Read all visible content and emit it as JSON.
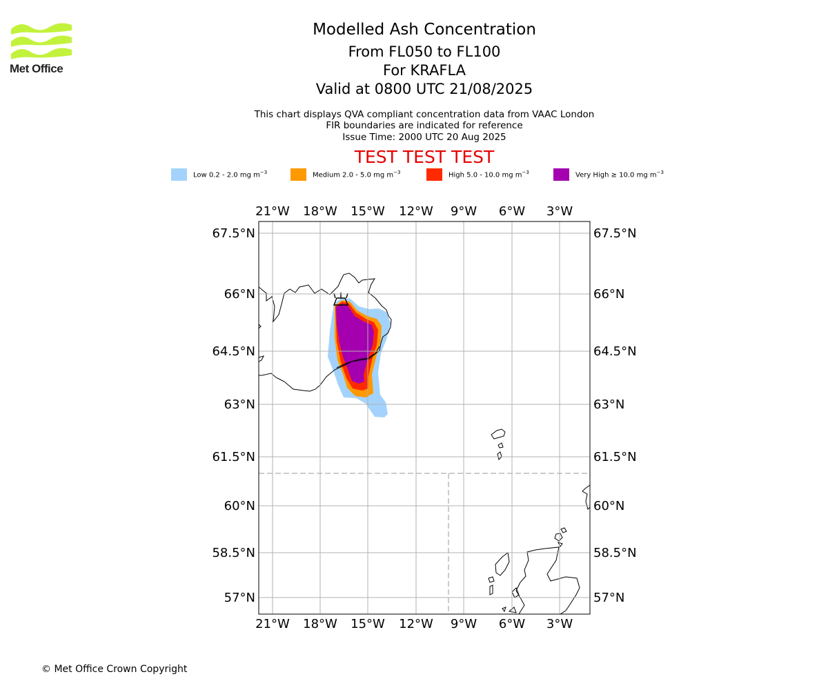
{
  "logo": {
    "text": "Met Office"
  },
  "title": "Modelled Ash Concentration",
  "subtitle_lines": [
    "From FL050 to FL100",
    "For KRAFLA",
    "Valid at 0800 UTC 21/08/2025"
  ],
  "info_lines": [
    "This chart displays QVA compliant concentration data from VAAC London",
    "FIR boundaries are indicated for reference",
    "Issue Time: 2000 UTC 20 Aug 2025"
  ],
  "test_banner": "TEST TEST TEST",
  "legend": [
    {
      "label": "Low 0.2 - 2.0 mg m",
      "color": "#a3d3fc"
    },
    {
      "label": "Medium 2.0 - 5.0 mg m",
      "color": "#ff9900"
    },
    {
      "label": "High 5.0 - 10.0 mg m",
      "color": "#ff2a00"
    },
    {
      "label": "Very High ≥ 10.0 mg m",
      "color": "#a400b0"
    }
  ],
  "legend_unit_exponent": "−3",
  "map": {
    "lon_ticks": [
      "21°W",
      "18°W",
      "15°W",
      "12°W",
      "9°W",
      "6°W",
      "3°W"
    ],
    "lat_ticks": [
      "67.5°N",
      "66°N",
      "64.5°N",
      "63°N",
      "61.5°N",
      "60°N",
      "58.5°N",
      "57°N"
    ],
    "volcano": "KRAFLA"
  },
  "copyright": "© Met Office Crown Copyright"
}
